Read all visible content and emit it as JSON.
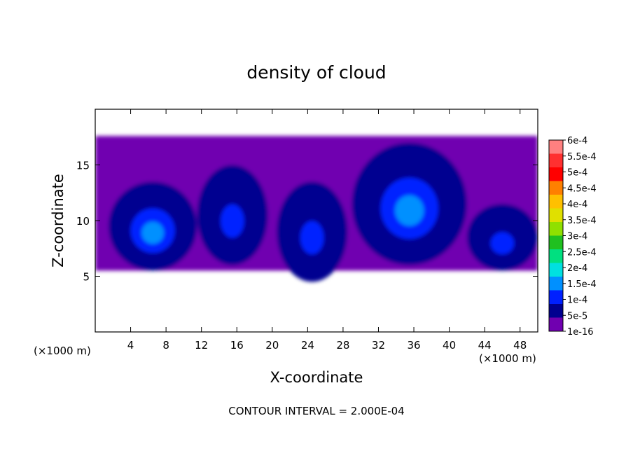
{
  "chart_data": {
    "type": "heatmap",
    "title": "density of cloud",
    "xlabel": "X-coordinate",
    "ylabel": "Z-coordinate",
    "x_unit": "(×1000 m)",
    "y_unit": "(×1000 m)",
    "xlim": [
      0,
      50
    ],
    "ylim": [
      0,
      20
    ],
    "x_ticks": [
      4,
      8,
      12,
      16,
      20,
      24,
      28,
      32,
      36,
      40,
      44,
      48
    ],
    "y_ticks": [
      5,
      10,
      15
    ],
    "footer": "CONTOUR INTERVAL = 2.000E-04",
    "colorbar": {
      "labels": [
        "6e-4",
        "5.5e-4",
        "5e-4",
        "4.5e-4",
        "4e-4",
        "3.5e-4",
        "3e-4",
        "2.5e-4",
        "2e-4",
        "1.5e-4",
        "1e-4",
        "5e-5",
        "1e-16"
      ],
      "levels": [
        0.0006,
        0.00055,
        0.0005,
        0.00045,
        0.0004,
        0.00035,
        0.0003,
        0.00025,
        0.0002,
        0.00015,
        0.0001,
        5e-05,
        1e-16
      ],
      "colors": [
        "#ff8080",
        "#ff3030",
        "#ff0000",
        "#ff8000",
        "#ffc000",
        "#e0e000",
        "#90e000",
        "#20c020",
        "#00e080",
        "#00e0e0",
        "#0090ff",
        "#0020ff",
        "#000090",
        "#7000b0"
      ]
    },
    "field_description_cells": {
      "layer_top": 17.6,
      "layer_bottom": 5.5,
      "cells": [
        {
          "x": 6.5,
          "z": 9.5,
          "rx": 5.0,
          "rz": 4.0,
          "peak": 0.00016
        },
        {
          "x": 15.5,
          "z": 10.5,
          "rx": 4.0,
          "rz": 4.5,
          "peak": 0.00012
        },
        {
          "x": 24.5,
          "z": 9.0,
          "rx": 4.0,
          "rz": 4.5,
          "peak": 0.00014
        },
        {
          "x": 35.5,
          "z": 11.5,
          "rx": 6.5,
          "rz": 5.5,
          "peak": 0.00018
        },
        {
          "x": 46.0,
          "z": 8.5,
          "rx": 4.0,
          "rz": 3.0,
          "peak": 0.00015
        }
      ]
    }
  }
}
